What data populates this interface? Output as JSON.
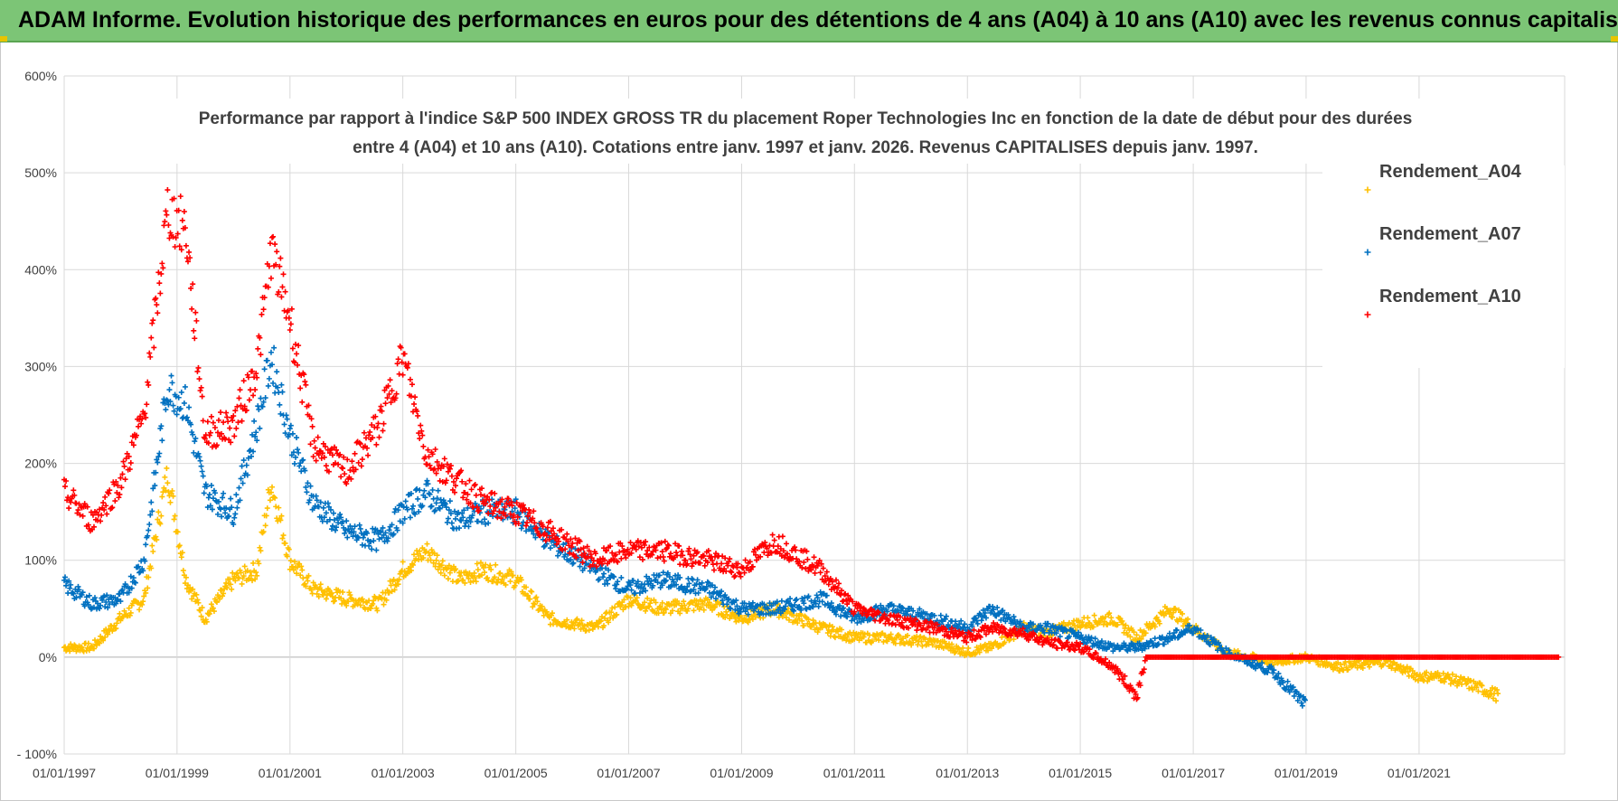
{
  "banner": {
    "title": "ADAM Informe. Evolution historique des performances en euros pour des détentions de 4 ans (A04) à 10 ans (A10) avec les revenus connus capitalisés"
  },
  "colors": {
    "banner_bg": "#7cc576",
    "A04": "#ffc000",
    "A07": "#0070c0",
    "A10": "#ff0000"
  },
  "chart_data": {
    "type": "scatter",
    "title_lines": [
      "Performance par rapport à l'indice S&P 500 INDEX GROSS TR  du placement Roper Technologies Inc en fonction de la date de début pour des durées",
      "entre 4 (A04) et 10 ans (A10).  Cotations entre janv. 1997 et janv. 2026. Revenus CAPITALISES  depuis janv. 1997."
    ],
    "xlabel": "",
    "ylabel": "",
    "x_ticks": [
      "01/01/1997",
      "01/01/1999",
      "01/01/2001",
      "01/01/2003",
      "01/01/2005",
      "01/01/2007",
      "01/01/2009",
      "01/01/2011",
      "01/01/2013",
      "01/01/2015",
      "01/01/2017",
      "01/01/2019",
      "01/01/2021"
    ],
    "xlim": [
      "1997-01-01",
      "2023-08-01"
    ],
    "y_ticks": [
      "600%",
      "500%",
      "400%",
      "300%",
      "200%",
      "100%",
      "0%",
      "- 100%"
    ],
    "ylim": [
      -100,
      600
    ],
    "grid": true,
    "marker": "+",
    "legend_position": "top-right",
    "series": [
      {
        "name": "Rendement_A04",
        "color": "#ffc000",
        "points": [
          [
            "1997-01-01",
            10
          ],
          [
            "1997-07-01",
            10
          ],
          [
            "1998-01-01",
            40
          ],
          [
            "1998-06-01",
            60
          ],
          [
            "1998-11-01",
            190
          ],
          [
            "1999-03-01",
            80
          ],
          [
            "1999-07-01",
            40
          ],
          [
            "2000-01-01",
            80
          ],
          [
            "2000-06-01",
            90
          ],
          [
            "2000-09-01",
            180
          ],
          [
            "2001-01-01",
            100
          ],
          [
            "2001-06-01",
            70
          ],
          [
            "2002-01-01",
            60
          ],
          [
            "2002-08-01",
            55
          ],
          [
            "2003-01-01",
            90
          ],
          [
            "2003-06-01",
            110
          ],
          [
            "2004-01-01",
            80
          ],
          [
            "2004-06-01",
            90
          ],
          [
            "2005-01-01",
            80
          ],
          [
            "2005-08-01",
            40
          ],
          [
            "2006-06-01",
            30
          ],
          [
            "2007-01-01",
            60
          ],
          [
            "2007-08-01",
            50
          ],
          [
            "2008-06-01",
            55
          ],
          [
            "2009-01-01",
            40
          ],
          [
            "2009-08-01",
            50
          ],
          [
            "2010-06-01",
            30
          ],
          [
            "2011-01-01",
            20
          ],
          [
            "2011-08-01",
            20
          ],
          [
            "2012-06-01",
            15
          ],
          [
            "2013-01-01",
            5
          ],
          [
            "2013-06-01",
            10
          ],
          [
            "2014-01-01",
            30
          ],
          [
            "2014-06-01",
            25
          ],
          [
            "2015-01-01",
            35
          ],
          [
            "2015-08-01",
            40
          ],
          [
            "2016-01-01",
            20
          ],
          [
            "2016-08-01",
            50
          ],
          [
            "2017-01-01",
            30
          ],
          [
            "2017-08-01",
            5
          ],
          [
            "2018-06-01",
            -5
          ],
          [
            "2019-01-01",
            0
          ],
          [
            "2019-08-01",
            -10
          ],
          [
            "2020-06-01",
            -5
          ],
          [
            "2021-01-01",
            -20
          ],
          [
            "2021-06-01",
            -20
          ],
          [
            "2022-01-01",
            -30
          ],
          [
            "2022-06-01",
            -40
          ]
        ]
      },
      {
        "name": "Rendement_A07",
        "color": "#0070c0",
        "points": [
          [
            "1997-01-01",
            75
          ],
          [
            "1997-07-01",
            55
          ],
          [
            "1998-01-01",
            60
          ],
          [
            "1998-06-01",
            100
          ],
          [
            "1998-11-01",
            280
          ],
          [
            "1999-03-01",
            260
          ],
          [
            "1999-07-01",
            170
          ],
          [
            "2000-01-01",
            150
          ],
          [
            "2000-06-01",
            240
          ],
          [
            "2000-09-01",
            310
          ],
          [
            "2001-01-01",
            230
          ],
          [
            "2001-06-01",
            160
          ],
          [
            "2002-01-01",
            130
          ],
          [
            "2002-08-01",
            120
          ],
          [
            "2003-01-01",
            150
          ],
          [
            "2003-06-01",
            170
          ],
          [
            "2004-01-01",
            140
          ],
          [
            "2004-06-01",
            150
          ],
          [
            "2005-01-01",
            150
          ],
          [
            "2005-08-01",
            120
          ],
          [
            "2006-06-01",
            90
          ],
          [
            "2007-01-01",
            70
          ],
          [
            "2007-08-01",
            80
          ],
          [
            "2008-06-01",
            70
          ],
          [
            "2009-01-01",
            50
          ],
          [
            "2009-08-01",
            50
          ],
          [
            "2010-06-01",
            60
          ],
          [
            "2011-01-01",
            40
          ],
          [
            "2011-08-01",
            50
          ],
          [
            "2012-06-01",
            40
          ],
          [
            "2013-01-01",
            30
          ],
          [
            "2013-06-01",
            50
          ],
          [
            "2014-01-01",
            30
          ],
          [
            "2014-06-01",
            30
          ],
          [
            "2015-01-01",
            20
          ],
          [
            "2015-08-01",
            10
          ],
          [
            "2016-01-01",
            10
          ],
          [
            "2016-08-01",
            20
          ],
          [
            "2017-01-01",
            30
          ],
          [
            "2017-08-01",
            5
          ],
          [
            "2018-06-01",
            -15
          ],
          [
            "2019-01-01",
            -50
          ]
        ]
      },
      {
        "name": "Rendement_A10",
        "color": "#ff0000",
        "points": [
          [
            "1997-01-01",
            170
          ],
          [
            "1997-07-01",
            140
          ],
          [
            "1998-01-01",
            180
          ],
          [
            "1998-06-01",
            250
          ],
          [
            "1998-11-01",
            460
          ],
          [
            "1999-03-01",
            440
          ],
          [
            "1999-07-01",
            230
          ],
          [
            "2000-01-01",
            240
          ],
          [
            "2000-06-01",
            300
          ],
          [
            "2000-09-01",
            420
          ],
          [
            "2001-01-01",
            350
          ],
          [
            "2001-06-01",
            220
          ],
          [
            "2002-01-01",
            190
          ],
          [
            "2002-08-01",
            240
          ],
          [
            "2003-01-01",
            310
          ],
          [
            "2003-06-01",
            210
          ],
          [
            "2004-01-01",
            180
          ],
          [
            "2004-06-01",
            160
          ],
          [
            "2005-01-01",
            150
          ],
          [
            "2005-08-01",
            130
          ],
          [
            "2006-06-01",
            100
          ],
          [
            "2007-01-01",
            110
          ],
          [
            "2007-08-01",
            110
          ],
          [
            "2008-06-01",
            100
          ],
          [
            "2009-01-01",
            90
          ],
          [
            "2009-08-01",
            120
          ],
          [
            "2010-06-01",
            90
          ],
          [
            "2011-01-01",
            50
          ],
          [
            "2011-08-01",
            40
          ],
          [
            "2012-06-01",
            30
          ],
          [
            "2013-01-01",
            20
          ],
          [
            "2013-06-01",
            30
          ],
          [
            "2014-01-01",
            25
          ],
          [
            "2014-06-01",
            15
          ],
          [
            "2015-01-01",
            10
          ],
          [
            "2015-08-01",
            -10
          ],
          [
            "2016-01-01",
            -40
          ],
          [
            "2016-03-01",
            0
          ],
          [
            "2018-01-01",
            0
          ],
          [
            "2020-01-01",
            0
          ],
          [
            "2022-01-01",
            0
          ],
          [
            "2023-07-01",
            0
          ]
        ]
      }
    ]
  }
}
